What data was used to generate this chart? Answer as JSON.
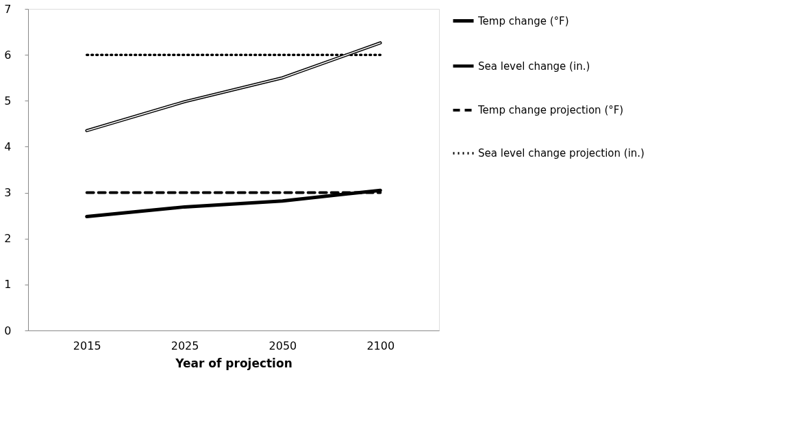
{
  "chart_data": {
    "type": "line",
    "xlabel": "Year of projection",
    "categories": [
      "2015",
      "2025",
      "2050",
      "2100"
    ],
    "series": [
      {
        "name": "Temp change (°F)",
        "color": "#000000",
        "values": [
          2.48,
          2.69,
          2.82,
          3.05
        ],
        "line_style": "solid"
      },
      {
        "name": "Sea level change (in.)",
        "color": "#000000",
        "values": [
          4.35,
          4.98,
          5.5,
          6.26
        ],
        "line_style": "solid"
      },
      {
        "name": "Temp change projection (°F)",
        "color": "#000000",
        "values": [
          3,
          3,
          3,
          3
        ],
        "line_style": "dashed"
      },
      {
        "name": "Sea level change projection (in.)",
        "color": "#000000",
        "values": [
          6,
          6,
          6,
          6
        ],
        "line_style": "dotted"
      }
    ],
    "ylim": [
      0,
      7
    ],
    "yticks": [
      0,
      1,
      2,
      3,
      4,
      5,
      6,
      7
    ],
    "grid": false,
    "legend": "right",
    "marker": "none"
  }
}
